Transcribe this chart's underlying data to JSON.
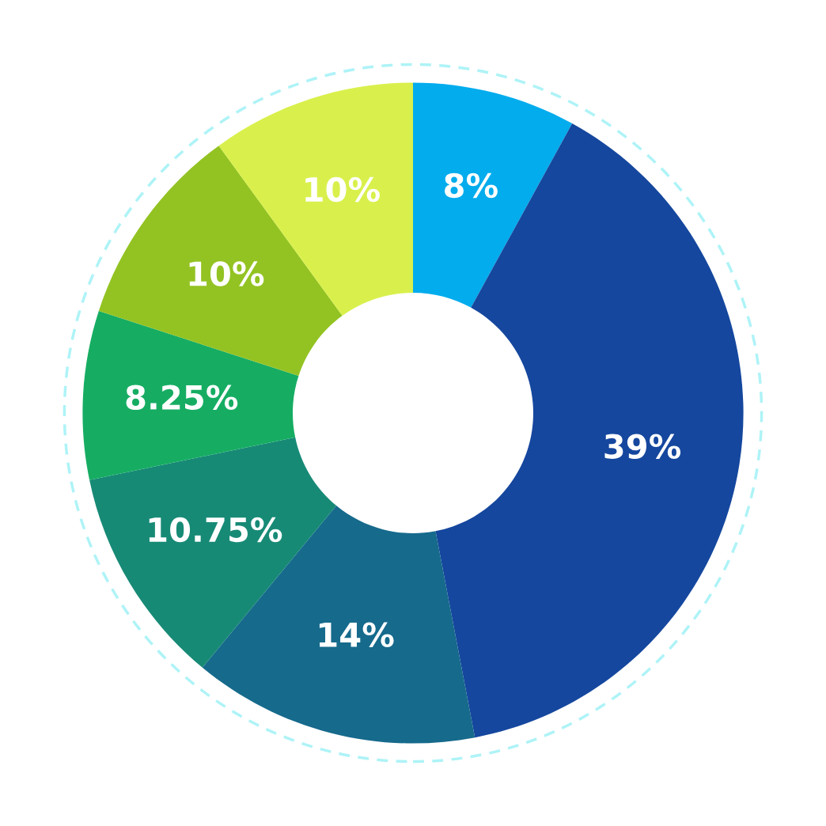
{
  "chart_data": {
    "type": "donut",
    "categories": [
      null,
      null,
      null,
      null,
      null,
      null,
      null
    ],
    "values": [
      8,
      39,
      14,
      10.75,
      8.25,
      10,
      10
    ],
    "colors": [
      "#03aced",
      "#15479e",
      "#166a8c",
      "#178a76",
      "#16ad63",
      "#93c322",
      "#d9f04c"
    ],
    "value_labels": [
      "8%",
      "39%",
      "14%",
      "10.75%",
      "8.25%",
      "10%",
      "10%"
    ],
    "legend": false
  }
}
